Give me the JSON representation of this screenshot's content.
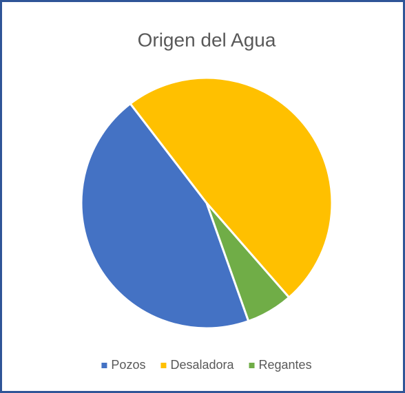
{
  "chart_data": {
    "type": "pie",
    "title": "Origen del Agua",
    "categories": [
      "Pozos",
      "Desaladora",
      "Regantes"
    ],
    "values": [
      45,
      49,
      6
    ],
    "colors": [
      "#4472c4",
      "#ffc000",
      "#70ad47"
    ],
    "legend": "bottom"
  }
}
